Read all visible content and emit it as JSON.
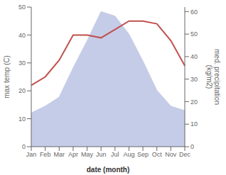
{
  "chart_data": {
    "type": "line",
    "categories": [
      "Jan",
      "Feb",
      "Mar",
      "Apr",
      "May",
      "Jun",
      "Jul",
      "Aug",
      "Sep",
      "Oct",
      "Nov",
      "Dec"
    ],
    "series": [
      {
        "type": "area",
        "axis": "y2",
        "color": "#c5cce8",
        "values": [
          15,
          18,
          22,
          35,
          47,
          60,
          58,
          50,
          38,
          25,
          18,
          16
        ]
      },
      {
        "type": "line",
        "axis": "y",
        "color": "#c0504d",
        "values": [
          22,
          25,
          31,
          40,
          40,
          39,
          42,
          45,
          45,
          44,
          38,
          29
        ]
      }
    ],
    "xlabel": "date (month)",
    "ylabel": "max temp (C)",
    "y2label": "med. precipitation\n(kg/m2)",
    "ylim": [
      0,
      50
    ],
    "yticks": [
      0,
      10,
      20,
      30,
      40,
      50
    ],
    "y2lim": [
      0,
      62
    ],
    "y2ticks": [
      0,
      10,
      20,
      30,
      40,
      50,
      60
    ],
    "grid": false
  }
}
